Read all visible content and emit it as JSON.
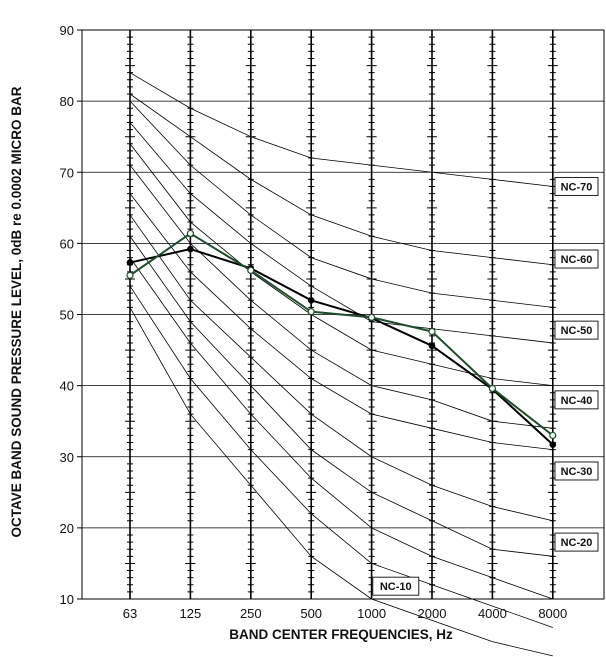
{
  "chart_data": {
    "type": "line",
    "xlabel": "BAND CENTER FREQUENCIES, Hz",
    "ylabel": "OCTAVE BAND SOUND PRESSURE LEVEL, 0dB re 0.0002 MICRO BAR",
    "categories": [
      "63",
      "125",
      "250",
      "500",
      "1000",
      "2000",
      "4000",
      "8000"
    ],
    "ylim": [
      10,
      90
    ],
    "yticks": [
      10,
      20,
      30,
      40,
      50,
      60,
      70,
      80,
      90
    ],
    "grid": true,
    "nc_curves": [
      {
        "name": "",
        "values": [
          51,
          36,
          26,
          16,
          10,
          7,
          4,
          2
        ]
      },
      {
        "name": "",
        "values": [
          54,
          41,
          31,
          22,
          15,
          12,
          9,
          6
        ]
      },
      {
        "name": "",
        "values": [
          58,
          46,
          36,
          27,
          20,
          16,
          13,
          10
        ]
      },
      {
        "name": "",
        "values": [
          61,
          49,
          40,
          31,
          25,
          21,
          17,
          16
        ]
      },
      {
        "name": "",
        "values": [
          64,
          52,
          44,
          36,
          30,
          26,
          23,
          21
        ]
      },
      {
        "name": "",
        "values": [
          67,
          56,
          48,
          41,
          36,
          34,
          32,
          31
        ]
      },
      {
        "name": "",
        "values": [
          71,
          60,
          52,
          45,
          40,
          38,
          35,
          34
        ]
      },
      {
        "name": "",
        "values": [
          74,
          63,
          56,
          50,
          45,
          43,
          41,
          40
        ]
      },
      {
        "name": "",
        "values": [
          77,
          67,
          60,
          54,
          49,
          48,
          47,
          46
        ]
      },
      {
        "name": "",
        "values": [
          80,
          71,
          64,
          58,
          55,
          53,
          52,
          51
        ]
      },
      {
        "name": "",
        "values": [
          81,
          75,
          69,
          64,
          61,
          59,
          58,
          57
        ]
      },
      {
        "name": "",
        "values": [
          84,
          79,
          75,
          72,
          71,
          70,
          69,
          68
        ]
      }
    ],
    "nc_labels": [
      {
        "text": "NC-70",
        "value": 68
      },
      {
        "text": "NC-60",
        "value": 57.8
      },
      {
        "text": "NC-50",
        "value": 47.8
      },
      {
        "text": "NC-40",
        "value": 38
      },
      {
        "text": "NC-30",
        "value": 28
      },
      {
        "text": "NC-20",
        "value": 18
      }
    ],
    "nc10_label": {
      "text": "NC-10",
      "category_index": 4.4,
      "value": 11.8
    },
    "series": [
      {
        "name": "",
        "color": "#000000",
        "marker": "filled",
        "values": [
          57.3,
          59.2,
          56.5,
          52,
          49.5,
          45.6,
          39.5,
          31.7
        ]
      },
      {
        "name": "",
        "color": "#1e4d2b",
        "marker": "open",
        "values": [
          55.5,
          61.4,
          56.2,
          50.4,
          49.6,
          47.6,
          39.6,
          33.0
        ]
      }
    ]
  }
}
